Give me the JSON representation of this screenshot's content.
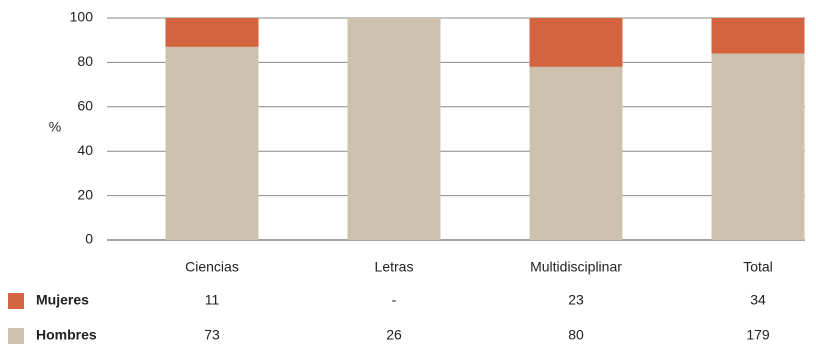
{
  "chart_data": {
    "type": "stacked_bar",
    "ylabel": "%",
    "categories": [
      "Ciencias",
      "Letras",
      "Multidisciplinar",
      "Total"
    ],
    "series": [
      {
        "name": "Mujeres",
        "color": "#d4643f",
        "values": [
          13,
          0,
          22,
          16
        ],
        "table_values": [
          "11",
          "-",
          "23",
          "34"
        ]
      },
      {
        "name": "Hombres",
        "color": "#cdc2ae",
        "values": [
          87,
          100,
          78,
          84
        ],
        "table_values": [
          "73",
          "26",
          "80",
          "179"
        ]
      }
    ],
    "ylim": [
      0,
      100
    ],
    "yticks": [
      0,
      20,
      40,
      60,
      80,
      100
    ],
    "grid": true
  }
}
